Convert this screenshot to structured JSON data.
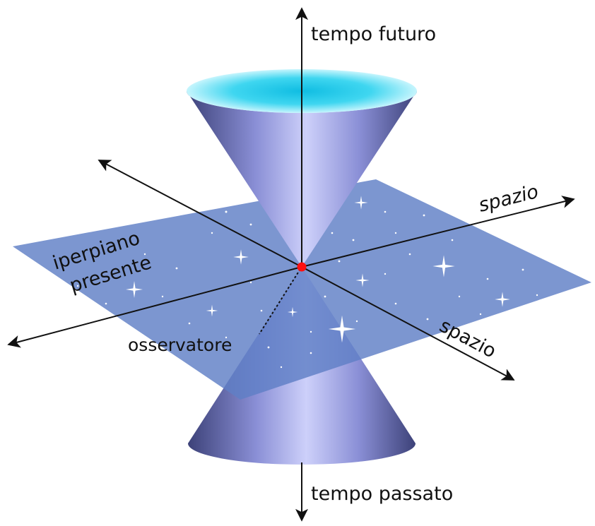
{
  "labels": {
    "time_future": "tempo futuro",
    "time_past": "tempo passato",
    "space_right": "spazio",
    "space_diag": "spazio",
    "hyperplane_line1": "iperpiano",
    "hyperplane_line2": "presente",
    "observer": "osservatore"
  },
  "colors": {
    "plane": "#5f7fc6",
    "cone_dark": "#3d4279",
    "cone_light": "#c8ccf8",
    "cone_opening_inner": "#1cc6e8",
    "cone_opening_edge": "#bff4fc",
    "observer_point": "#ff1010",
    "axis": "#111111",
    "star": "#ffffff"
  },
  "icons": {
    "observer": "red-dot-icon",
    "axis_heads": "arrowhead-icon",
    "stars": "sparkle-icon"
  }
}
